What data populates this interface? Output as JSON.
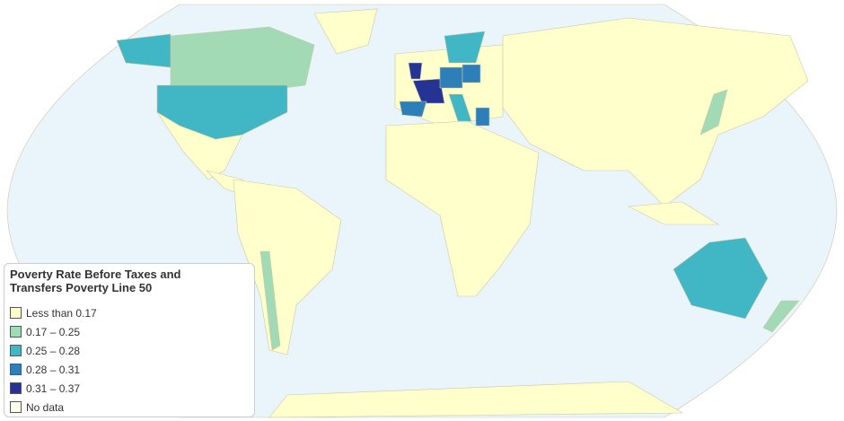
{
  "legend": {
    "title": "Poverty Rate Before Taxes and Transfers Poverty Line 50",
    "items": [
      {
        "label": "Less than 0.17",
        "color": "#ffffcc"
      },
      {
        "label": "0.17 – 0.25",
        "color": "#a1dab4"
      },
      {
        "label": "0.25 – 0.28",
        "color": "#41b6c4"
      },
      {
        "label": "0.28 – 0.31",
        "color": "#2c7fb8"
      },
      {
        "label": "0.31 – 0.37",
        "color": "#253494"
      },
      {
        "label": "No data",
        "color": "#fffff0"
      }
    ]
  }
}
